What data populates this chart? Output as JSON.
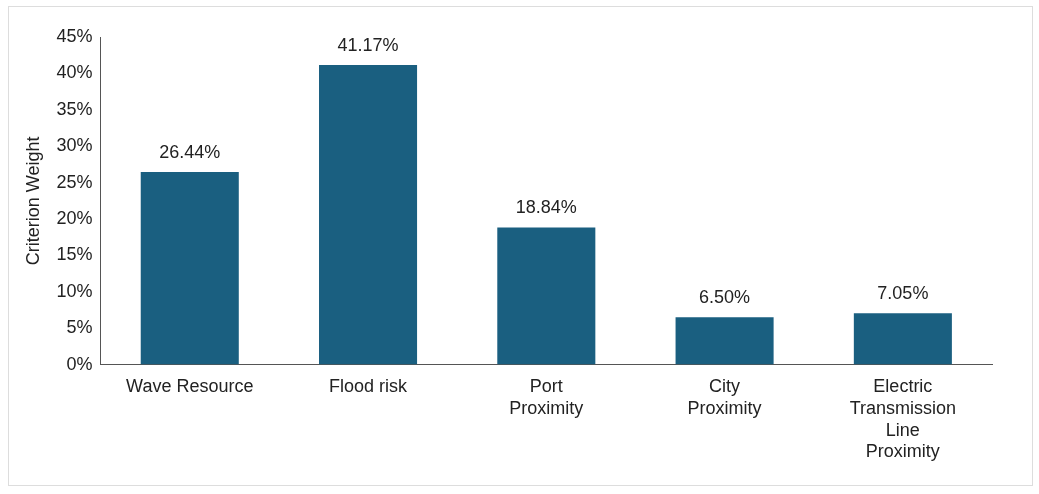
{
  "chart_data": {
    "type": "bar",
    "ylabel": "Criterion Weight",
    "categories": [
      "Wave Resource",
      "Flood risk",
      "Port Proximity",
      "City Proximity",
      "Electric Transmission Line Proximity"
    ],
    "values": [
      26.44,
      41.17,
      18.84,
      6.5,
      7.05
    ],
    "value_labels": [
      "26.44%",
      "41.17%",
      "18.84%",
      "6.50%",
      "7.05%"
    ],
    "color": "#1a5f80",
    "ylim": [
      0,
      45
    ],
    "yticks": [
      {
        "value": 0,
        "label": "0%"
      },
      {
        "value": 5,
        "label": "5%"
      },
      {
        "value": 10,
        "label": "10%"
      },
      {
        "value": 15,
        "label": "15%"
      },
      {
        "value": 20,
        "label": "20%"
      },
      {
        "value": 25,
        "label": "25%"
      },
      {
        "value": 30,
        "label": "30%"
      },
      {
        "value": 35,
        "label": "35%"
      },
      {
        "value": 40,
        "label": "40%"
      },
      {
        "value": 45,
        "label": "45%"
      }
    ],
    "grid": false,
    "legend": false
  }
}
